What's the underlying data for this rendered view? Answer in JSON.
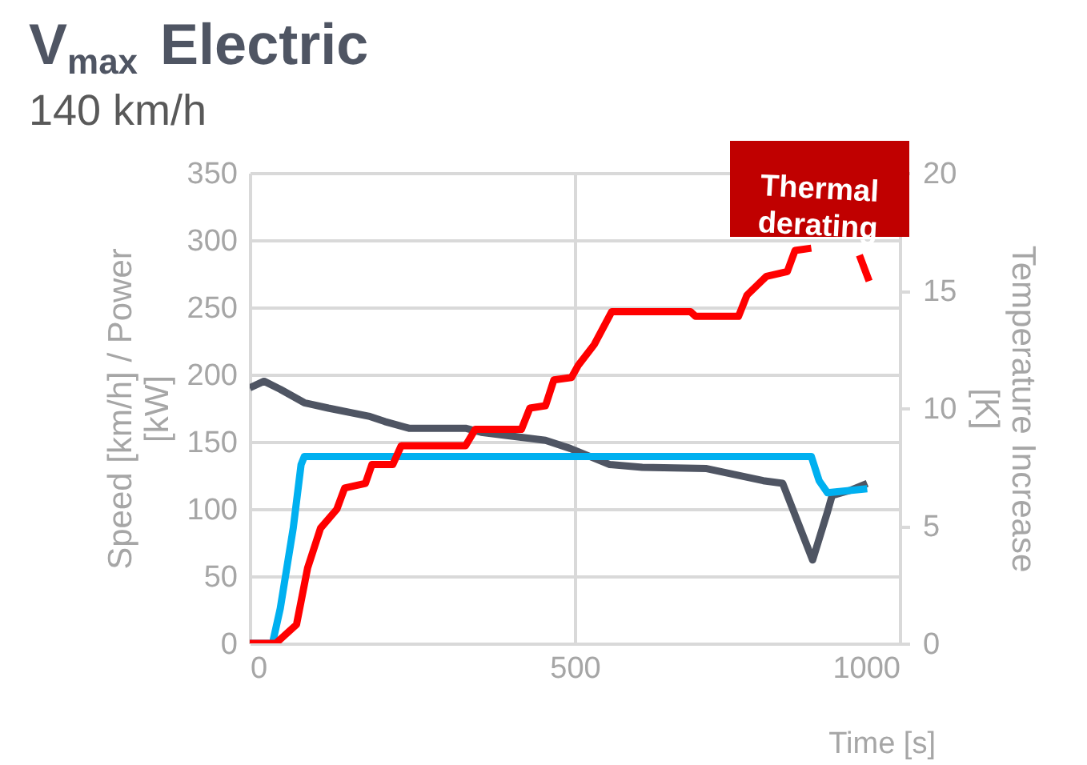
{
  "chart_data": {
    "type": "line",
    "title": "V$_{max}$ Electric",
    "subtitle": "140 km/h",
    "xlabel": "Time [s]",
    "ylabel": "Speed [km/h] / Power [kW]",
    "y2label": "Temperature Increase [K]",
    "xlim": [
      0,
      1000
    ],
    "xticks": [
      0,
      500,
      1000
    ],
    "ylim": [
      0,
      350
    ],
    "yticks": [
      0,
      50,
      100,
      150,
      200,
      250,
      300,
      350
    ],
    "y2lim": [
      0,
      20
    ],
    "y2ticks": [
      0,
      5,
      10,
      15,
      20
    ],
    "grid": true,
    "legend": false,
    "line_style": "solid",
    "marker": "none",
    "annotations": [
      "Thermal derating"
    ],
    "series": [
      {
        "color": "#4f5563",
        "x": [
          0,
          22,
          47,
          84,
          121,
          183,
          208,
          245,
          332,
          356,
          455,
          493,
          554,
          604,
          703,
          790,
          820,
          866,
          889,
          896,
          925,
          950
        ],
        "values": [
          190,
          195,
          189,
          179,
          175,
          169,
          165,
          160,
          160,
          157,
          151,
          145,
          133,
          131,
          130,
          121,
          119,
          62,
          98,
          110,
          114,
          119
        ]
      },
      {
        "color": "#00b0f0",
        "x": [
          0,
          35,
          47,
          67,
          79,
          84,
          864,
          876,
          889,
          950
        ],
        "values": [
          0,
          0,
          26,
          86,
          133,
          139,
          139,
          121,
          112,
          115
        ]
      },
      {
        "color": "#ff0000",
        "axis": "y2",
        "x": [
          0,
          40,
          72,
          89,
          109,
          134,
          146,
          178,
          188,
          220,
          233,
          332,
          347,
          418,
          431,
          455,
          468,
          495,
          505,
          530,
          557,
          678,
          686,
          752,
          765,
          795,
          827,
          839,
          864,
          900,
          938,
          953
        ],
        "values": [
          0,
          0,
          0.8,
          3.2,
          4.9,
          5.7,
          6.6,
          6.8,
          7.6,
          7.6,
          8.4,
          8.4,
          9.1,
          9.1,
          10,
          10.1,
          11.2,
          11.3,
          11.8,
          12.7,
          14.1,
          14.1,
          13.9,
          13.9,
          14.8,
          15.6,
          15.8,
          16.7,
          16.8,
          null,
          16.5,
          15.4
        ]
      }
    ]
  }
}
